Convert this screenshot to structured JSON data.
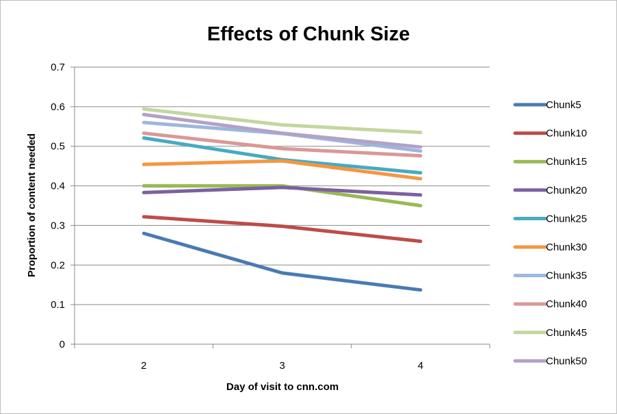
{
  "chart_data": {
    "type": "line",
    "title": "Effects of Chunk Size",
    "xlabel": "Day of visit to cnn.com",
    "ylabel": "Proportion of content needed",
    "categories": [
      "2",
      "3",
      "4"
    ],
    "ylim": [
      0,
      0.7
    ],
    "yticks": [
      "0",
      "0.1",
      "0.2",
      "0.3",
      "0.4",
      "0.5",
      "0.6",
      "0.7"
    ],
    "grid": true,
    "legend": "right",
    "series": [
      {
        "name": "Chunk5",
        "color": "#4a7ab4",
        "values": [
          0.28,
          0.18,
          0.137
        ]
      },
      {
        "name": "Chunk10",
        "color": "#be4b48",
        "values": [
          0.322,
          0.298,
          0.26
        ]
      },
      {
        "name": "Chunk15",
        "color": "#98b954",
        "values": [
          0.4,
          0.4,
          0.35
        ]
      },
      {
        "name": "Chunk20",
        "color": "#7d60a0",
        "values": [
          0.383,
          0.396,
          0.377
        ]
      },
      {
        "name": "Chunk25",
        "color": "#46aac5",
        "values": [
          0.521,
          0.466,
          0.433
        ]
      },
      {
        "name": "Chunk30",
        "color": "#f59640",
        "values": [
          0.454,
          0.463,
          0.418
        ]
      },
      {
        "name": "Chunk35",
        "color": "#9bb7de",
        "values": [
          0.56,
          0.532,
          0.488
        ]
      },
      {
        "name": "Chunk40",
        "color": "#da9896",
        "values": [
          0.533,
          0.494,
          0.476
        ]
      },
      {
        "name": "Chunk45",
        "color": "#c3d6a0",
        "values": [
          0.594,
          0.554,
          0.535
        ]
      },
      {
        "name": "Chunk50",
        "color": "#b2a2c7",
        "values": [
          0.58,
          0.533,
          0.498
        ]
      }
    ]
  }
}
